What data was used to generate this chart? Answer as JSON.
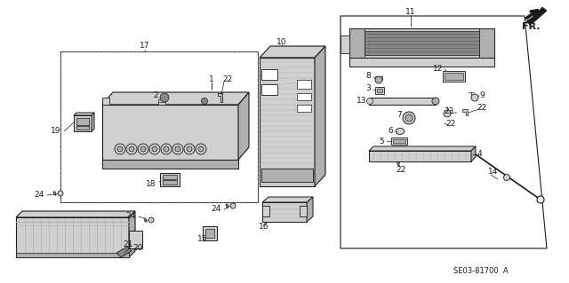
{
  "bg_color": "#ffffff",
  "line_color": "#1a1a1a",
  "gray_light": "#d0d0d0",
  "gray_mid": "#b0b0b0",
  "gray_dark": "#888888",
  "diagram_code": "SE03-81700  A",
  "fr_text": "FR.",
  "label_fontsize": 6.5,
  "small_fontsize": 6.0
}
